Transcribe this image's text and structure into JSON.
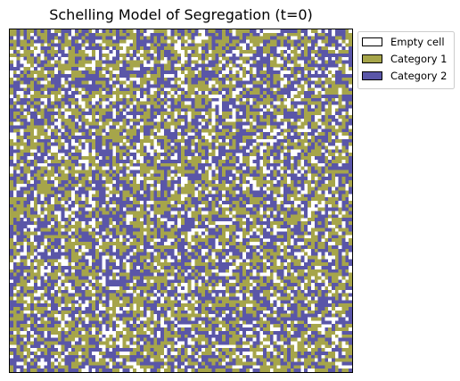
{
  "chart_data": {
    "type": "heatmap",
    "title": "Schelling Model of Segregation (t=0)",
    "xlabel": "",
    "ylabel": "",
    "axis_ticks": "none",
    "grid_cells": {
      "rows": 100,
      "cols": 100
    },
    "cell_states": [
      "Empty cell",
      "Category 1",
      "Category 2"
    ],
    "approx_fractions": {
      "Empty cell": 0.2,
      "Category 1": 0.4,
      "Category 2": 0.4
    },
    "legend": {
      "location": "upper-right, outside plot",
      "entries": [
        {
          "label": "Empty cell",
          "color": "#ffffff",
          "edge": "#000000"
        },
        {
          "label": "Category 1",
          "color": "#a6a54a",
          "edge": "#000000"
        },
        {
          "label": "Category 2",
          "color": "#5a56a8",
          "edge": "#000000"
        }
      ]
    },
    "colors": {
      "empty": "#ffffff",
      "category_1": "#a6a54a",
      "category_2": "#5a56a8",
      "frame": "#000000",
      "legend_frame": "#cccccc"
    }
  }
}
